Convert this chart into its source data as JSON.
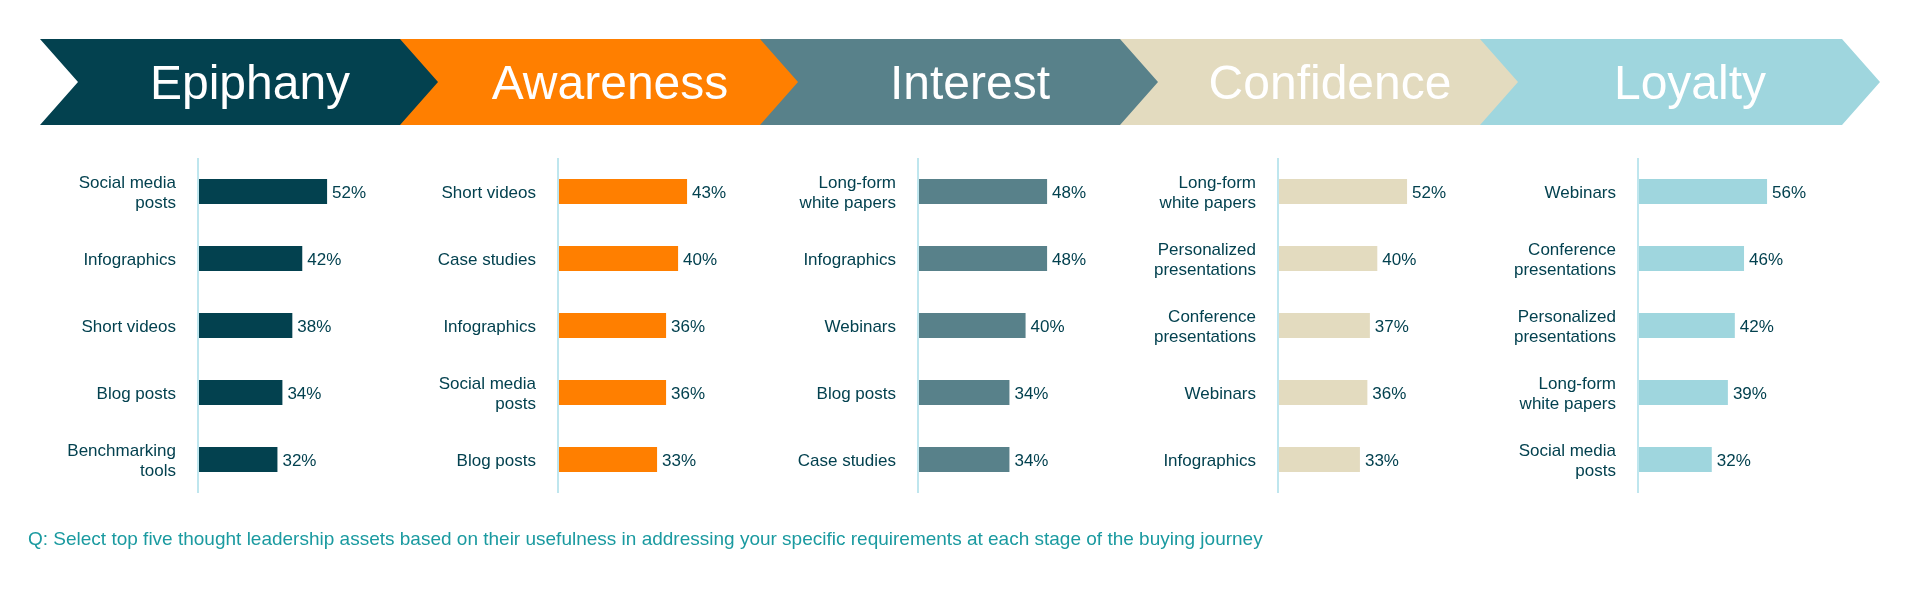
{
  "chart_data": [
    {
      "type": "bar",
      "orientation": "horizontal",
      "title": "Epiphany",
      "categories": [
        "Social media posts",
        "Infographics",
        "Short videos",
        "Blog posts",
        "Benchmarking tools"
      ],
      "values": [
        52,
        42,
        38,
        34,
        32
      ],
      "value_labels": [
        "52%",
        "42%",
        "38%",
        "34%",
        "32%"
      ],
      "color": "#03414f",
      "annotations": [
        "Q: Select top five thought leadership assets based on their usefulness in addressing your specific requirements at each stage of the buying journey"
      ]
    },
    {
      "type": "bar",
      "orientation": "horizontal",
      "title": "Awareness",
      "categories": [
        "Short videos",
        "Case studies",
        "Infographics",
        "Social media posts",
        "Blog posts"
      ],
      "values": [
        43,
        40,
        36,
        36,
        33
      ],
      "value_labels": [
        "43%",
        "40%",
        "36%",
        "36%",
        "33%"
      ],
      "color": "#ff7f00"
    },
    {
      "type": "bar",
      "orientation": "horizontal",
      "title": "Interest",
      "categories": [
        "Long-form white papers",
        "Infographics",
        "Webinars",
        "Blog posts",
        "Case studies"
      ],
      "values": [
        48,
        48,
        40,
        34,
        34
      ],
      "value_labels": [
        "48%",
        "48%",
        "40%",
        "34%",
        "34%"
      ],
      "color": "#58818a"
    },
    {
      "type": "bar",
      "orientation": "horizontal",
      "title": "Confidence",
      "categories": [
        "Long-form white papers",
        "Personalized presentations",
        "Conference presentations",
        "Webinars",
        "Infographics"
      ],
      "values": [
        52,
        40,
        37,
        36,
        33
      ],
      "value_labels": [
        "52%",
        "40%",
        "37%",
        "36%",
        "33%"
      ],
      "color": "#e3dbbf"
    },
    {
      "type": "bar",
      "orientation": "horizontal",
      "title": "Loyalty",
      "categories": [
        "Webinars",
        "Conference presentations",
        "Personalized presentations",
        "Long-form white papers",
        "Social media posts"
      ],
      "values": [
        56,
        46,
        42,
        39,
        32
      ],
      "value_labels": [
        "56%",
        "46%",
        "42%",
        "39%",
        "32%"
      ],
      "color": "#9fd6de"
    }
  ]
}
